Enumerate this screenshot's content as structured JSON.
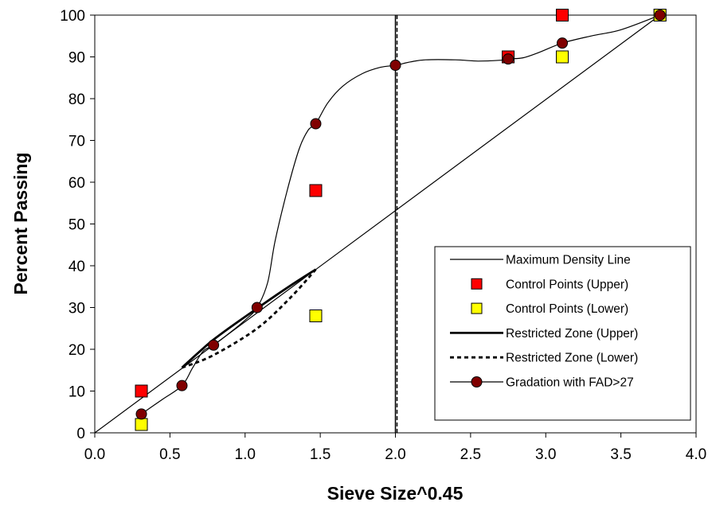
{
  "chart_data": {
    "type": "scatter",
    "title": "",
    "xlabel": "Sieve Size^0.45",
    "ylabel": "Percent Passing",
    "xlim": [
      0,
      4
    ],
    "ylim": [
      0,
      100
    ],
    "x_ticks": [
      "0.0",
      "0.5",
      "1.0",
      "1.5",
      "2.0",
      "2.5",
      "3.0",
      "3.5",
      "4.0"
    ],
    "y_ticks": [
      "0",
      "10",
      "20",
      "30",
      "40",
      "50",
      "60",
      "70",
      "80",
      "90",
      "100"
    ],
    "grid": false,
    "legend_position": "bottom-right",
    "vertical_marker_x": 2.0,
    "series": [
      {
        "name": "Maximum Density Line",
        "style": "thin-line",
        "color": "#000000",
        "points": [
          [
            0,
            0
          ],
          [
            3.76,
            100
          ]
        ]
      },
      {
        "name": "Control Points (Upper)",
        "style": "square-marker",
        "color": "#ff0000",
        "points": [
          [
            0.31,
            10
          ],
          [
            1.47,
            58
          ],
          [
            2.75,
            90
          ],
          [
            3.11,
            100
          ],
          [
            3.76,
            100
          ]
        ]
      },
      {
        "name": "Control Points (Lower)",
        "style": "square-marker",
        "color": "#ffff00",
        "points": [
          [
            0.31,
            2
          ],
          [
            1.47,
            28
          ],
          [
            3.11,
            90
          ],
          [
            3.76,
            100
          ]
        ]
      },
      {
        "name": "Restricted Zone (Upper)",
        "style": "thick-line",
        "color": "#000000",
        "points": [
          [
            0.58,
            15.6
          ],
          [
            0.79,
            22.3
          ],
          [
            1.08,
            29.8
          ],
          [
            1.3,
            35.2
          ],
          [
            1.47,
            39.1
          ]
        ]
      },
      {
        "name": "Restricted Zone (Lower)",
        "style": "dashed-line",
        "color": "#000000",
        "points": [
          [
            0.58,
            15.6
          ],
          [
            0.79,
            18.6
          ],
          [
            1.08,
            25.0
          ],
          [
            1.3,
            32.3
          ],
          [
            1.47,
            39.1
          ]
        ]
      },
      {
        "name": "Gradation with FAD>27",
        "style": "circle-marker-line",
        "color": "#800000",
        "points": [
          [
            0.31,
            4.5
          ],
          [
            0.58,
            11.3
          ],
          [
            0.79,
            21.0
          ],
          [
            1.08,
            30.0
          ],
          [
            1.47,
            74.0
          ],
          [
            2.0,
            88.0
          ],
          [
            2.75,
            89.5
          ],
          [
            3.11,
            93.3
          ],
          [
            3.76,
            100
          ]
        ],
        "curve": [
          [
            0.31,
            4.5
          ],
          [
            0.45,
            8.0
          ],
          [
            0.58,
            11.3
          ],
          [
            0.65,
            15.5
          ],
          [
            0.72,
            19.5
          ],
          [
            0.79,
            21.0
          ],
          [
            0.9,
            24.0
          ],
          [
            1.0,
            27.0
          ],
          [
            1.08,
            30.0
          ],
          [
            1.15,
            36.0
          ],
          [
            1.2,
            46.0
          ],
          [
            1.28,
            58.0
          ],
          [
            1.36,
            68.0
          ],
          [
            1.42,
            72.5
          ],
          [
            1.47,
            74.0
          ],
          [
            1.55,
            79.0
          ],
          [
            1.65,
            83.0
          ],
          [
            1.78,
            86.0
          ],
          [
            1.9,
            87.5
          ],
          [
            2.0,
            88.0
          ],
          [
            2.1,
            88.8
          ],
          [
            2.2,
            89.3
          ],
          [
            2.4,
            89.3
          ],
          [
            2.55,
            89.0
          ],
          [
            2.7,
            89.2
          ],
          [
            2.75,
            89.5
          ],
          [
            2.85,
            89.8
          ],
          [
            2.95,
            91.0
          ],
          [
            3.11,
            93.3
          ],
          [
            3.3,
            95.0
          ],
          [
            3.5,
            96.5
          ],
          [
            3.76,
            100
          ]
        ]
      }
    ]
  }
}
